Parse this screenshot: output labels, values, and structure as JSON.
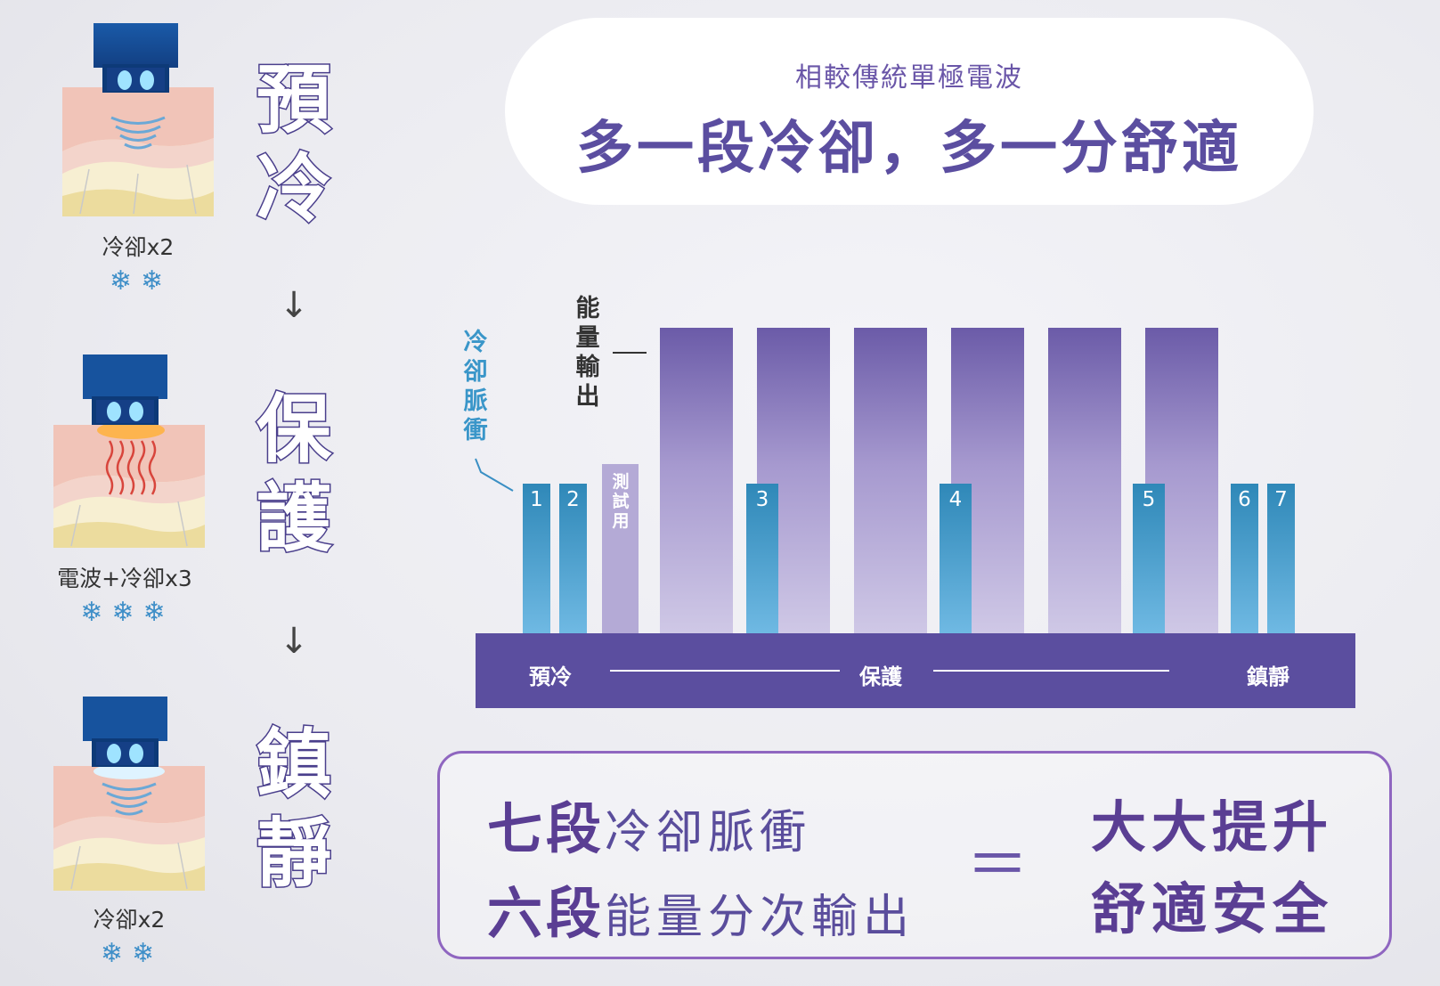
{
  "header": {
    "subtitle": "相較傳統單極電波",
    "title": "多一段冷卻，多一分舒適"
  },
  "steps": [
    {
      "caption": "冷卻x2",
      "flakes": "❄❄",
      "word": "預冷"
    },
    {
      "caption": "電波+冷卻x3",
      "flakes": "❄❄❄",
      "word": "保護"
    },
    {
      "caption": "冷卻x2",
      "flakes": "❄❄",
      "word": "鎮靜"
    }
  ],
  "arrow_glyph": "↓",
  "colors": {
    "cooling_bar_top": "#2f88b8",
    "cooling_bar_bottom": "#6fb9e3",
    "energy_bar_top": "#6b5ba8",
    "energy_bar_bottom": "#cfc8e6",
    "base": "#5b4e9f",
    "accent_text": "#5a3e93"
  },
  "chart_data": {
    "type": "bar",
    "legend": {
      "cooling": "冷卻脈衝",
      "energy": "能量輸出"
    },
    "cooling_pulses": [
      "1",
      "2",
      "3",
      "4",
      "5",
      "6",
      "7"
    ],
    "test_label": "測試用",
    "energy_outputs": 6,
    "phases": [
      "預冷",
      "保護",
      "鎮靜"
    ]
  },
  "result": {
    "line1_bold": "七段",
    "line1_rest": "冷卻脈衝",
    "line2_bold": "六段",
    "line2_rest": "能量分次輸出",
    "equals": "＝",
    "right1": "大大提升",
    "right2": "舒適安全"
  }
}
